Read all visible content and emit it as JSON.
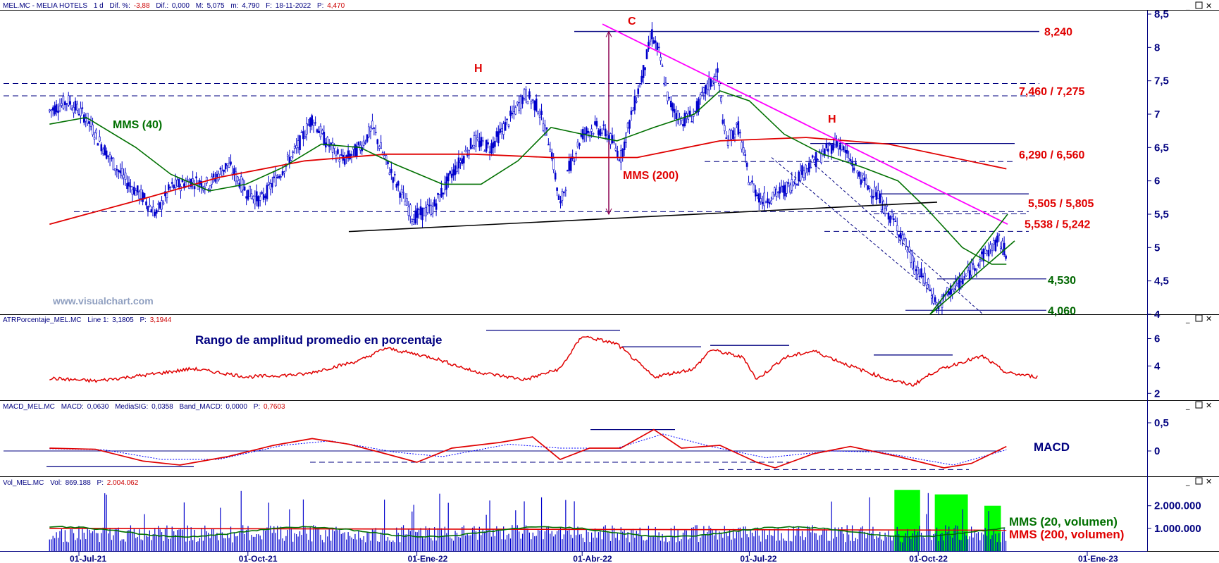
{
  "header": {
    "symbol": "MEL.MC - MELIA HOTELS",
    "period": "1 d",
    "dif_pct_label": "Dif. %:",
    "dif_pct_value": "-3,88",
    "dif_label": "Dif.:",
    "dif_value": "0,000",
    "max_label": "M:",
    "max_value": "5,075",
    "min_label": "m:",
    "min_value": "4,790",
    "date_label": "F:",
    "date_value": "18-11-2022",
    "price_label": "P:",
    "price_value": "4,470"
  },
  "watermark": "www.visualchart.com",
  "colors": {
    "axis": "#000080",
    "candles": "#0000cc",
    "mm200": "#e00000",
    "mm40": "#007000",
    "trendline_magenta": "#ff00ff",
    "level_red": "#e00000",
    "level_green": "#006600",
    "volume_highlight": "#00ff00"
  },
  "chart_data": [
    {
      "type": "candlestick",
      "name": "price",
      "header": "MEL.MC - MELIA HOTELS 1 d",
      "ylim": [
        4.0,
        8.5
      ],
      "y_ticks": [
        "8,5",
        "8",
        "7,5",
        "7",
        "6,5",
        "6",
        "5,5",
        "5",
        "4,5",
        "4"
      ],
      "x_ticks": [
        "01-Jul-21",
        "01-Oct-21",
        "01-Ene-22",
        "01-Abr-22",
        "01-Jul-22",
        "01-Oct-22",
        "01-Ene-23"
      ],
      "x_tick_fracs": [
        0.0,
        0.1405,
        0.2818,
        0.4212,
        0.5618,
        0.7025,
        0.8431
      ],
      "x_start_frac_to_jul21": 0.0,
      "series_anchor_points": [
        {
          "x": "2021-06-15",
          "y": 7.05
        },
        {
          "x": "2021-06-25",
          "y": 7.2
        },
        {
          "x": "2021-07-05",
          "y": 6.95
        },
        {
          "x": "2021-07-12",
          "y": 6.6
        },
        {
          "x": "2021-07-20",
          "y": 6.25
        },
        {
          "x": "2021-07-28",
          "y": 5.95
        },
        {
          "x": "2021-08-05",
          "y": 5.75
        },
        {
          "x": "2021-08-12",
          "y": 5.5
        },
        {
          "x": "2021-08-20",
          "y": 5.9
        },
        {
          "x": "2021-08-31",
          "y": 6.0
        },
        {
          "x": "2021-09-10",
          "y": 5.95
        },
        {
          "x": "2021-09-20",
          "y": 6.25
        },
        {
          "x": "2021-09-30",
          "y": 5.85
        },
        {
          "x": "2021-10-08",
          "y": 5.7
        },
        {
          "x": "2021-10-18",
          "y": 6.1
        },
        {
          "x": "2021-10-28",
          "y": 6.5
        },
        {
          "x": "2021-11-05",
          "y": 6.95
        },
        {
          "x": "2021-11-12",
          "y": 6.6
        },
        {
          "x": "2021-11-22",
          "y": 6.3
        },
        {
          "x": "2021-12-01",
          "y": 6.5
        },
        {
          "x": "2021-12-08",
          "y": 6.8
        },
        {
          "x": "2021-12-15",
          "y": 6.3
        },
        {
          "x": "2021-12-22",
          "y": 5.9
        },
        {
          "x": "2021-12-30",
          "y": 5.45
        },
        {
          "x": "2022-01-10",
          "y": 5.6
        },
        {
          "x": "2022-01-20",
          "y": 6.1
        },
        {
          "x": "2022-02-01",
          "y": 6.6
        },
        {
          "x": "2022-02-10",
          "y": 6.5
        },
        {
          "x": "2022-02-20",
          "y": 6.9
        },
        {
          "x": "2022-03-01",
          "y": 7.3
        },
        {
          "x": "2022-03-08",
          "y": 7.1
        },
        {
          "x": "2022-03-15",
          "y": 6.5
        },
        {
          "x": "2022-03-20",
          "y": 5.6
        },
        {
          "x": "2022-03-25",
          "y": 6.2
        },
        {
          "x": "2022-04-01",
          "y": 6.7
        },
        {
          "x": "2022-04-08",
          "y": 6.8
        },
        {
          "x": "2022-04-15",
          "y": 6.7
        },
        {
          "x": "2022-04-22",
          "y": 6.35
        },
        {
          "x": "2022-04-28",
          "y": 7.0
        },
        {
          "x": "2022-05-04",
          "y": 7.6
        },
        {
          "x": "2022-05-09",
          "y": 8.2
        },
        {
          "x": "2022-05-13",
          "y": 7.9
        },
        {
          "x": "2022-05-18",
          "y": 7.2
        },
        {
          "x": "2022-05-25",
          "y": 6.9
        },
        {
          "x": "2022-06-01",
          "y": 7.0
        },
        {
          "x": "2022-06-08",
          "y": 7.4
        },
        {
          "x": "2022-06-14",
          "y": 7.6
        },
        {
          "x": "2022-06-18",
          "y": 6.6
        },
        {
          "x": "2022-06-25",
          "y": 6.8
        },
        {
          "x": "2022-07-01",
          "y": 6.0
        },
        {
          "x": "2022-07-08",
          "y": 5.7
        },
        {
          "x": "2022-07-15",
          "y": 5.8
        },
        {
          "x": "2022-07-22",
          "y": 5.9
        },
        {
          "x": "2022-08-01",
          "y": 6.2
        },
        {
          "x": "2022-08-10",
          "y": 6.4
        },
        {
          "x": "2022-08-18",
          "y": 6.6
        },
        {
          "x": "2022-08-25",
          "y": 6.3
        },
        {
          "x": "2022-09-01",
          "y": 6.0
        },
        {
          "x": "2022-09-08",
          "y": 5.8
        },
        {
          "x": "2022-09-15",
          "y": 5.5
        },
        {
          "x": "2022-09-22",
          "y": 5.2
        },
        {
          "x": "2022-09-29",
          "y": 4.7
        },
        {
          "x": "2022-10-05",
          "y": 4.5
        },
        {
          "x": "2022-10-12",
          "y": 4.1
        },
        {
          "x": "2022-10-18",
          "y": 4.35
        },
        {
          "x": "2022-10-25",
          "y": 4.5
        },
        {
          "x": "2022-11-01",
          "y": 4.75
        },
        {
          "x": "2022-11-08",
          "y": 4.95
        },
        {
          "x": "2022-11-14",
          "y": 5.1
        },
        {
          "x": "2022-11-18",
          "y": 4.9
        }
      ],
      "mm40_points": [
        {
          "x": "2021-06-15",
          "y": 6.85
        },
        {
          "x": "2021-07-05",
          "y": 6.95
        },
        {
          "x": "2021-08-01",
          "y": 6.5
        },
        {
          "x": "2021-08-20",
          "y": 6.1
        },
        {
          "x": "2021-09-10",
          "y": 5.85
        },
        {
          "x": "2021-09-30",
          "y": 5.95
        },
        {
          "x": "2021-10-20",
          "y": 6.2
        },
        {
          "x": "2021-11-10",
          "y": 6.55
        },
        {
          "x": "2021-12-01",
          "y": 6.5
        },
        {
          "x": "2021-12-20",
          "y": 6.25
        },
        {
          "x": "2022-01-15",
          "y": 5.95
        },
        {
          "x": "2022-02-05",
          "y": 5.95
        },
        {
          "x": "2022-02-25",
          "y": 6.3
        },
        {
          "x": "2022-03-15",
          "y": 6.8
        },
        {
          "x": "2022-04-01",
          "y": 6.7
        },
        {
          "x": "2022-04-20",
          "y": 6.6
        },
        {
          "x": "2022-05-10",
          "y": 6.8
        },
        {
          "x": "2022-06-01",
          "y": 7.0
        },
        {
          "x": "2022-06-15",
          "y": 7.35
        },
        {
          "x": "2022-07-01",
          "y": 7.2
        },
        {
          "x": "2022-07-20",
          "y": 6.7
        },
        {
          "x": "2022-08-10",
          "y": 6.4
        },
        {
          "x": "2022-09-01",
          "y": 6.2
        },
        {
          "x": "2022-09-20",
          "y": 6.0
        },
        {
          "x": "2022-10-05",
          "y": 5.6
        },
        {
          "x": "2022-10-25",
          "y": 5.0
        },
        {
          "x": "2022-11-10",
          "y": 4.75
        },
        {
          "x": "2022-11-18",
          "y": 4.75
        }
      ],
      "mm200_points": [
        {
          "x": "2021-06-15",
          "y": 5.35
        },
        {
          "x": "2021-08-01",
          "y": 5.7
        },
        {
          "x": "2021-09-15",
          "y": 6.05
        },
        {
          "x": "2021-11-01",
          "y": 6.3
        },
        {
          "x": "2021-12-15",
          "y": 6.4
        },
        {
          "x": "2022-02-01",
          "y": 6.4
        },
        {
          "x": "2022-03-15",
          "y": 6.35
        },
        {
          "x": "2022-05-01",
          "y": 6.35
        },
        {
          "x": "2022-06-15",
          "y": 6.6
        },
        {
          "x": "2022-08-01",
          "y": 6.65
        },
        {
          "x": "2022-09-15",
          "y": 6.55
        },
        {
          "x": "2022-11-18",
          "y": 6.18
        }
      ],
      "levels": [
        {
          "label": "8,240",
          "color": "#e00000"
        },
        {
          "label": "7,460 / 7,275",
          "color": "#e00000"
        },
        {
          "label": "6,290 / 6,560",
          "color": "#e00000"
        },
        {
          "label": "5,505 / 5,805",
          "color": "#e00000"
        },
        {
          "label": "5,538 / 5,242",
          "color": "#e00000"
        },
        {
          "label": "4,530",
          "color": "#006600"
        },
        {
          "label": "4,060",
          "color": "#006600"
        }
      ],
      "annotations": [
        "C",
        "H",
        "H",
        "MMS (40)",
        "MMS (200)"
      ]
    },
    {
      "type": "line",
      "name": "ATR percentage",
      "header": {
        "name": "ATRPorcentaje_MEL.MC",
        "series": "Line 1:",
        "value": "3,1805",
        "price_label": "P:",
        "price": "3,1944"
      },
      "title": "Rango de amplitud promedio en porcentaje",
      "ylim": [
        1.5,
        7.0
      ],
      "y_ticks": [
        "6",
        "4",
        "2"
      ],
      "points": [
        {
          "x": "2021-06-15",
          "y": 3.1
        },
        {
          "x": "2021-07-10",
          "y": 2.9
        },
        {
          "x": "2021-08-10",
          "y": 3.4
        },
        {
          "x": "2021-09-01",
          "y": 3.8
        },
        {
          "x": "2021-10-01",
          "y": 3.2
        },
        {
          "x": "2021-11-01",
          "y": 3.4
        },
        {
          "x": "2021-12-01",
          "y": 4.4
        },
        {
          "x": "2021-12-15",
          "y": 5.3
        },
        {
          "x": "2022-01-10",
          "y": 4.6
        },
        {
          "x": "2022-02-01",
          "y": 3.6
        },
        {
          "x": "2022-03-01",
          "y": 3.0
        },
        {
          "x": "2022-03-20",
          "y": 3.8
        },
        {
          "x": "2022-04-01",
          "y": 6.2
        },
        {
          "x": "2022-04-20",
          "y": 5.6
        },
        {
          "x": "2022-05-10",
          "y": 3.2
        },
        {
          "x": "2022-06-01",
          "y": 3.8
        },
        {
          "x": "2022-06-10",
          "y": 5.2
        },
        {
          "x": "2022-06-28",
          "y": 4.6
        },
        {
          "x": "2022-07-05",
          "y": 3.0
        },
        {
          "x": "2022-07-20",
          "y": 4.6
        },
        {
          "x": "2022-08-05",
          "y": 5.1
        },
        {
          "x": "2022-08-25",
          "y": 4.0
        },
        {
          "x": "2022-09-15",
          "y": 3.0
        },
        {
          "x": "2022-09-28",
          "y": 2.6
        },
        {
          "x": "2022-10-10",
          "y": 3.6
        },
        {
          "x": "2022-10-25",
          "y": 4.3
        },
        {
          "x": "2022-11-05",
          "y": 4.7
        },
        {
          "x": "2022-11-18",
          "y": 3.5
        },
        {
          "x": "2022-12-05",
          "y": 3.2
        }
      ]
    },
    {
      "type": "line",
      "name": "MACD",
      "header": {
        "name": "MACD_MEL.MC",
        "macd_label": "MACD:",
        "macd": "0,0630",
        "sig_label": "MediaSIG:",
        "sig": "0,0358",
        "band_label": "Band_MACD:",
        "band": "0,0000",
        "price_label": "P:",
        "price": "0,7603"
      },
      "label": "MACD",
      "ylim": [
        -0.45,
        0.7
      ],
      "y_ticks": [
        "0,5",
        "0"
      ],
      "macd_points": [
        {
          "x": "2021-06-15",
          "y": 0.05
        },
        {
          "x": "2021-07-10",
          "y": 0.03
        },
        {
          "x": "2021-08-05",
          "y": -0.18
        },
        {
          "x": "2021-08-25",
          "y": -0.25
        },
        {
          "x": "2021-09-20",
          "y": -0.1
        },
        {
          "x": "2021-10-15",
          "y": 0.1
        },
        {
          "x": "2021-11-05",
          "y": 0.22
        },
        {
          "x": "2021-11-25",
          "y": 0.12
        },
        {
          "x": "2021-12-15",
          "y": -0.05
        },
        {
          "x": "2022-01-01",
          "y": -0.2
        },
        {
          "x": "2022-01-20",
          "y": 0.05
        },
        {
          "x": "2022-02-15",
          "y": 0.15
        },
        {
          "x": "2022-03-05",
          "y": 0.25
        },
        {
          "x": "2022-03-20",
          "y": -0.15
        },
        {
          "x": "2022-04-05",
          "y": 0.05
        },
        {
          "x": "2022-04-22",
          "y": 0.05
        },
        {
          "x": "2022-05-10",
          "y": 0.38
        },
        {
          "x": "2022-05-25",
          "y": 0.05
        },
        {
          "x": "2022-06-15",
          "y": 0.1
        },
        {
          "x": "2022-07-05",
          "y": -0.2
        },
        {
          "x": "2022-07-15",
          "y": -0.3
        },
        {
          "x": "2022-08-05",
          "y": -0.05
        },
        {
          "x": "2022-08-25",
          "y": 0.08
        },
        {
          "x": "2022-09-20",
          "y": -0.1
        },
        {
          "x": "2022-10-15",
          "y": -0.3
        },
        {
          "x": "2022-10-30",
          "y": -0.22
        },
        {
          "x": "2022-11-18",
          "y": 0.08
        }
      ],
      "signal_points": [
        {
          "x": "2021-06-15",
          "y": 0.04
        },
        {
          "x": "2021-07-15",
          "y": 0.02
        },
        {
          "x": "2021-08-15",
          "y": -0.15
        },
        {
          "x": "2021-09-15",
          "y": -0.15
        },
        {
          "x": "2021-10-20",
          "y": 0.1
        },
        {
          "x": "2021-11-15",
          "y": 0.18
        },
        {
          "x": "2021-12-20",
          "y": -0.02
        },
        {
          "x": "2022-01-15",
          "y": -0.1
        },
        {
          "x": "2022-02-20",
          "y": 0.12
        },
        {
          "x": "2022-03-20",
          "y": 0.05
        },
        {
          "x": "2022-04-20",
          "y": 0.05
        },
        {
          "x": "2022-05-15",
          "y": 0.3
        },
        {
          "x": "2022-06-10",
          "y": 0.08
        },
        {
          "x": "2022-07-10",
          "y": -0.12
        },
        {
          "x": "2022-08-15",
          "y": 0.0
        },
        {
          "x": "2022-09-10",
          "y": -0.02
        },
        {
          "x": "2022-10-20",
          "y": -0.25
        },
        {
          "x": "2022-11-18",
          "y": 0.02
        }
      ]
    },
    {
      "type": "bar",
      "name": "Volume",
      "header": {
        "name": "Vol_MEL.MC",
        "vol_label": "Vol:",
        "vol": "869.188",
        "price_label": "P:",
        "price": "2.004.062"
      },
      "ylim": [
        0,
        2800000
      ],
      "y_ticks": [
        "2.000.000",
        "1.000.000"
      ],
      "series_labels": [
        {
          "label": "MMS (20, volumen)",
          "color": "#007000"
        },
        {
          "label": "MMS (200, volumen)",
          "color": "#e00000"
        }
      ],
      "typical_volume": 850000,
      "mm200_level": 1000000,
      "highlight_windows": [
        {
          "from": "2022-09-18",
          "to": "2022-10-02",
          "top": 2700000
        },
        {
          "from": "2022-10-10",
          "to": "2022-10-28",
          "top": 2500000
        },
        {
          "from": "2022-11-06",
          "to": "2022-11-15",
          "top": 2000000
        }
      ]
    }
  ]
}
